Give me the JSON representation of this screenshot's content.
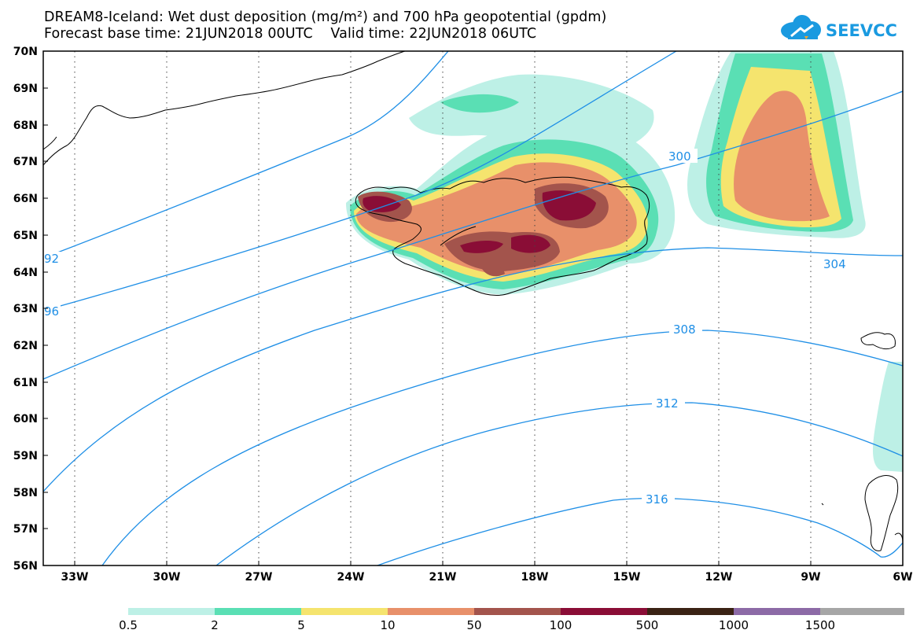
{
  "header": {
    "title_line1": "DREAM8-Iceland: Wet dust deposition (mg/m²) and 700 hPa geopotential (gpdm)",
    "title_line2": "Forecast base time: 21JUN2018 00UTC    Valid time: 22JUN2018 06UTC"
  },
  "logo": {
    "text": "SEEVCCC",
    "icon": "cloud-icon",
    "color": "#1a9ae0"
  },
  "map": {
    "lat_labels": [
      "70N",
      "69N",
      "68N",
      "67N",
      "66N",
      "65N",
      "64N",
      "63N",
      "62N",
      "61N",
      "60N",
      "59N",
      "58N",
      "57N",
      "56N"
    ],
    "lon_labels": [
      "33W",
      "30W",
      "27W",
      "24W",
      "21W",
      "18W",
      "15W",
      "12W",
      "9W",
      "6W"
    ],
    "contour_labels": [
      "300",
      "304",
      "308",
      "312",
      "316",
      "92",
      "96"
    ],
    "contour_color": "#1f8fe6",
    "coast_color": "#000000"
  },
  "colorbar": {
    "labels": [
      "0.5",
      "2",
      "5",
      "10",
      "50",
      "100",
      "500",
      "1000",
      "1500"
    ],
    "colors": [
      "#bdf0e6",
      "#5adfb4",
      "#f5e46e",
      "#e8906a",
      "#a3544c",
      "#8a0d36",
      "#3a2214",
      "#8c6aa6",
      "#a6a6a6"
    ]
  }
}
